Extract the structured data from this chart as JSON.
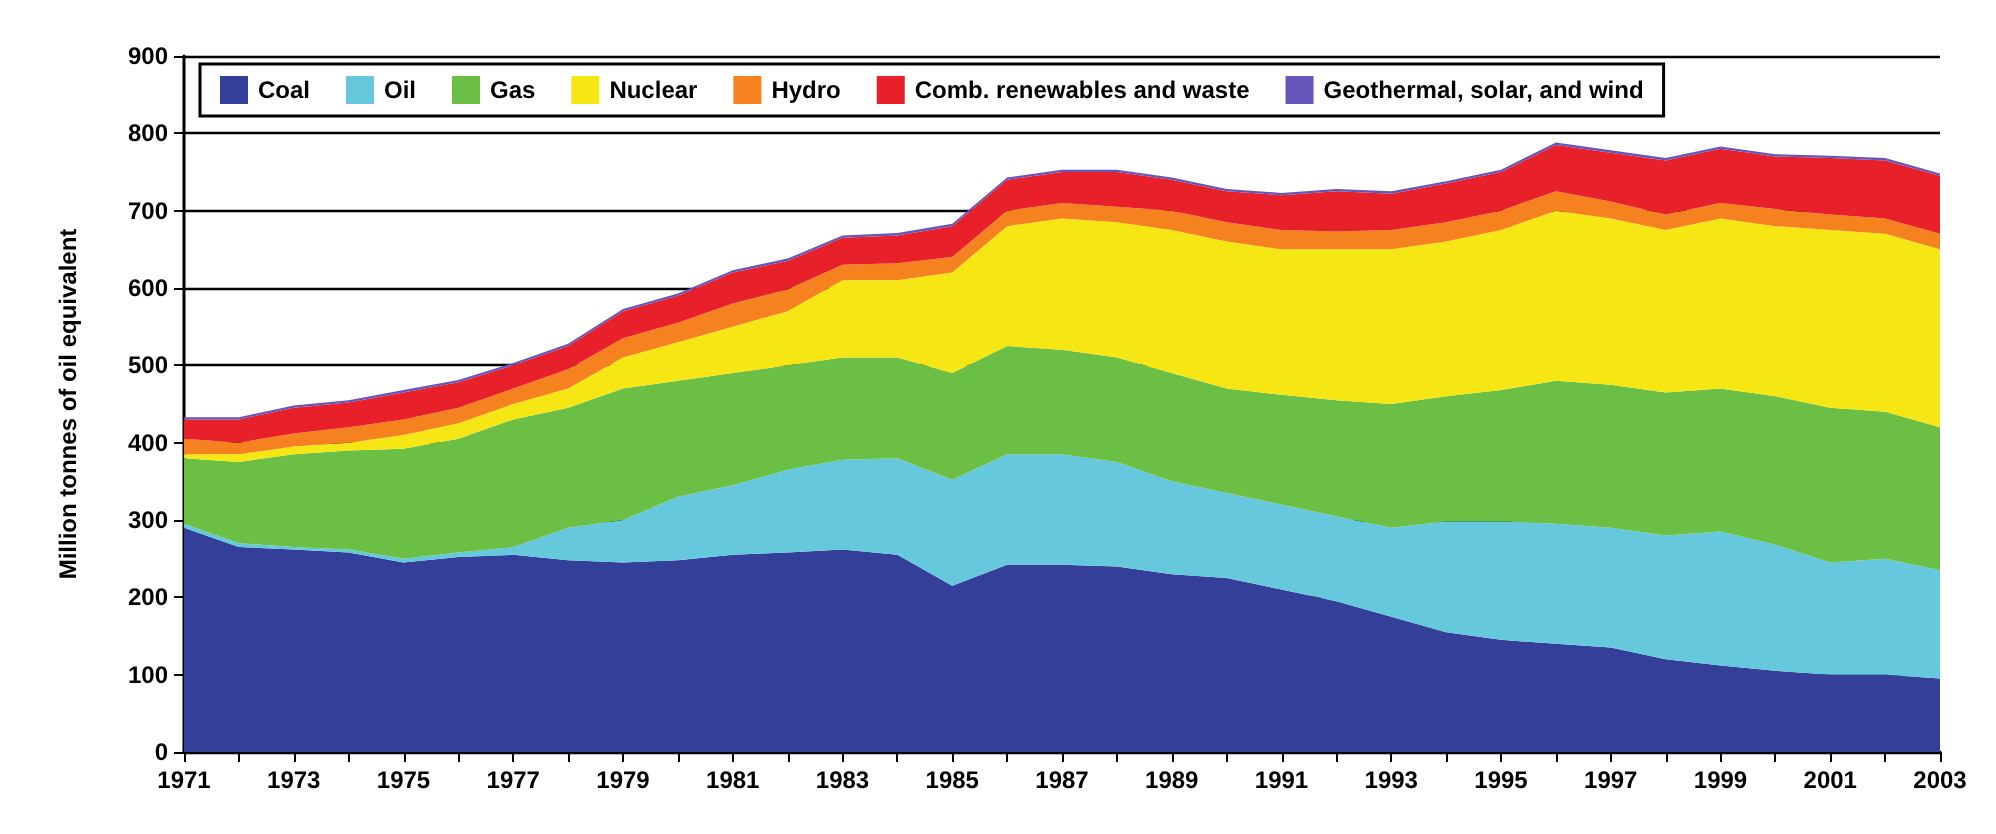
{
  "chart_data": {
    "type": "area",
    "stacked": true,
    "ylabel": "Million tonnes of oil equivalent",
    "categories": [
      "1971",
      null,
      "1973",
      null,
      "1975",
      null,
      "1977",
      null,
      "1979",
      null,
      "1981",
      null,
      "1983",
      null,
      "1985",
      null,
      "1987",
      null,
      "1989",
      null,
      "1991",
      null,
      "1993",
      null,
      "1995",
      null,
      "1997",
      null,
      "1999",
      null,
      "2001",
      null,
      "2003"
    ],
    "series": [
      {
        "name": "Coal",
        "color": "#333f99",
        "values": [
          290,
          265,
          262,
          258,
          245,
          252,
          255,
          248,
          245,
          248,
          255,
          258,
          262,
          255,
          215,
          242,
          242,
          240,
          230,
          225,
          210,
          195,
          175,
          155,
          145,
          140,
          135,
          120,
          112,
          105,
          100,
          100,
          95
        ]
      },
      {
        "name": "Oil",
        "color": "#66c8dc",
        "values": [
          5,
          5,
          3,
          4,
          5,
          6,
          10,
          42,
          55,
          82,
          90,
          107,
          116,
          125,
          137,
          143,
          143,
          135,
          120,
          110,
          110,
          110,
          115,
          143,
          153,
          155,
          155,
          160,
          173,
          163,
          145,
          150,
          140
        ]
      },
      {
        "name": "Gas",
        "color": "#6cbf45",
        "values": [
          85,
          105,
          120,
          128,
          142,
          147,
          165,
          155,
          170,
          150,
          145,
          135,
          132,
          130,
          138,
          140,
          135,
          135,
          140,
          135,
          142,
          150,
          160,
          162,
          170,
          185,
          185,
          185,
          185,
          192,
          200,
          190,
          185
        ]
      },
      {
        "name": "Nuclear",
        "color": "#f5e614",
        "values": [
          5,
          10,
          10,
          10,
          18,
          20,
          20,
          25,
          40,
          50,
          60,
          70,
          100,
          100,
          130,
          155,
          170,
          175,
          185,
          190,
          188,
          195,
          200,
          200,
          207,
          220,
          215,
          210,
          220,
          220,
          230,
          230,
          230
        ]
      },
      {
        "name": "Hydro",
        "color": "#f5821f",
        "values": [
          20,
          15,
          17,
          20,
          20,
          20,
          20,
          25,
          25,
          25,
          30,
          28,
          20,
          22,
          20,
          20,
          20,
          20,
          25,
          25,
          25,
          23,
          25,
          25,
          25,
          25,
          22,
          20,
          20,
          22,
          20,
          20,
          20
        ]
      },
      {
        "name": "Comb. renewables and waste",
        "color": "#e8202a",
        "values": [
          25,
          30,
          33,
          32,
          35,
          33,
          30,
          30,
          35,
          35,
          40,
          37,
          35,
          36,
          40,
          40,
          40,
          45,
          40,
          40,
          45,
          52,
          47,
          50,
          50,
          60,
          63,
          70,
          70,
          68,
          73,
          75,
          75
        ]
      },
      {
        "name": "Geothermal, solar, and wind",
        "color": "#6655bb",
        "values": [
          3,
          3,
          3,
          3,
          3,
          3,
          3,
          3,
          3,
          3,
          3,
          3,
          3,
          3,
          3,
          3,
          3,
          3,
          3,
          3,
          3,
          3,
          3,
          3,
          3,
          3,
          3,
          3,
          3,
          3,
          3,
          3,
          3
        ]
      }
    ],
    "ylim": [
      0,
      900
    ],
    "yticks": [
      0,
      100,
      200,
      300,
      400,
      500,
      600,
      700,
      800,
      900
    ],
    "grid": "y",
    "legend": "top",
    "marker": "none"
  }
}
